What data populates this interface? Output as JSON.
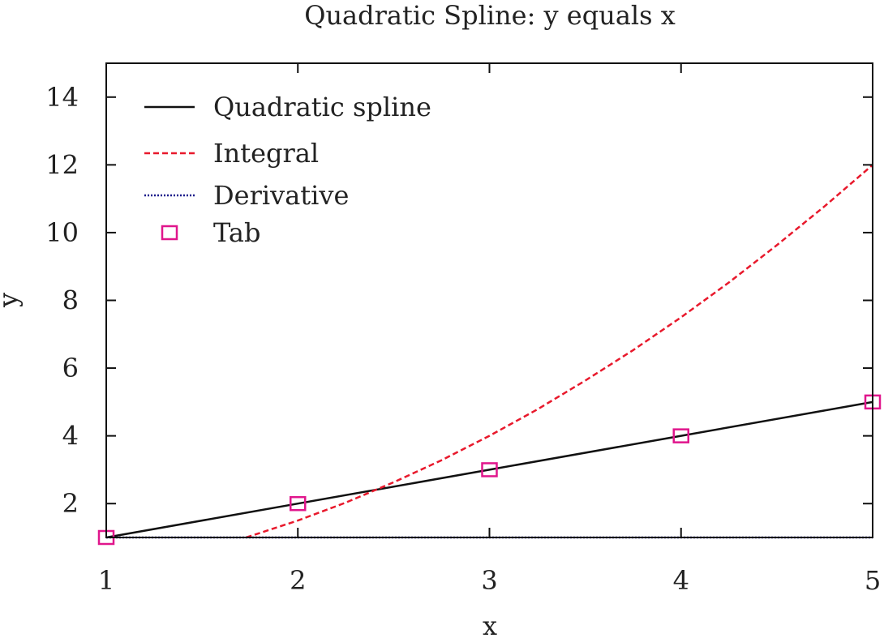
{
  "chart_data": {
    "type": "line",
    "title": "Quadratic Spline: y equals x",
    "xlabel": "x",
    "ylabel": "y",
    "xlim": [
      1,
      5
    ],
    "ylim": [
      1,
      15
    ],
    "x_ticks": [
      1,
      2,
      3,
      4,
      5
    ],
    "y_ticks": [
      2,
      4,
      6,
      8,
      10,
      12,
      14
    ],
    "grid": false,
    "legend_position": "top-left",
    "series": [
      {
        "name": "Quadratic spline",
        "kind": "line",
        "style": "solid",
        "color": "#111111",
        "x": [
          1,
          2,
          3,
          4,
          5
        ],
        "y": [
          1,
          2,
          3,
          4,
          5
        ]
      },
      {
        "name": "Integral",
        "kind": "line",
        "style": "dashed",
        "color": "#e8192c",
        "x": [
          1.73,
          2,
          2.25,
          2.5,
          2.75,
          3,
          3.25,
          3.5,
          3.75,
          4,
          4.25,
          4.5,
          4.75,
          5
        ],
        "y": [
          1.0,
          1.5,
          2.03,
          2.63,
          3.28,
          4.0,
          4.78,
          5.63,
          6.53,
          7.5,
          8.53,
          9.63,
          10.78,
          12.0
        ]
      },
      {
        "name": "Derivative",
        "kind": "line",
        "style": "dotted",
        "color": "#1a1a8c",
        "x": [
          1,
          2,
          3,
          4,
          5
        ],
        "y": [
          1,
          1,
          1,
          1,
          1
        ]
      },
      {
        "name": "Tab",
        "kind": "marker",
        "marker": "square",
        "color": "#e0168c",
        "x": [
          1,
          2,
          3,
          4,
          5
        ],
        "y": [
          1,
          2,
          3,
          4,
          5
        ]
      }
    ]
  }
}
